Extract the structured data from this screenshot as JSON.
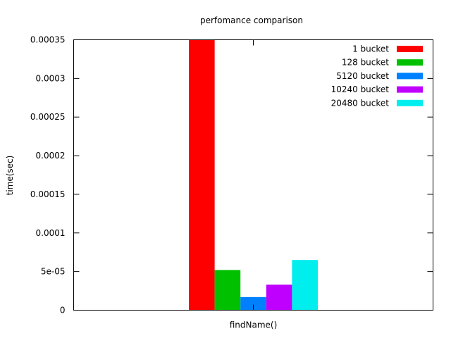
{
  "chart_data": {
    "type": "bar",
    "title": "perfomance comparison",
    "xlabel": "",
    "ylabel": "time(sec)",
    "categories": [
      "findName()"
    ],
    "ylim": [
      0,
      0.00035
    ],
    "yticks": [
      {
        "value": 0,
        "label": "0"
      },
      {
        "value": 5e-05,
        "label": "5e-05"
      },
      {
        "value": 0.0001,
        "label": "0.0001"
      },
      {
        "value": 0.00015,
        "label": "0.00015"
      },
      {
        "value": 0.0002,
        "label": "0.0002"
      },
      {
        "value": 0.00025,
        "label": "0.00025"
      },
      {
        "value": 0.0003,
        "label": "0.0003"
      },
      {
        "value": 0.00035,
        "label": "0.00035"
      }
    ],
    "grid": false,
    "legend": "top-right",
    "series": [
      {
        "name": "1 bucket",
        "color": "#ff0000",
        "values": [
          0.00035
        ]
      },
      {
        "name": "128 bucket",
        "color": "#00c000",
        "values": [
          5.2e-05
        ]
      },
      {
        "name": "5120 bucket",
        "color": "#0080ff",
        "values": [
          1.7e-05
        ]
      },
      {
        "name": "10240 bucket",
        "color": "#c000ff",
        "values": [
          3.3e-05
        ]
      },
      {
        "name": "20480 bucket",
        "color": "#00eeee",
        "values": [
          6.5e-05
        ]
      }
    ]
  }
}
